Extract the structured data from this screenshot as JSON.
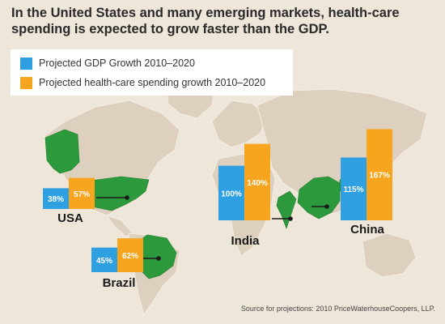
{
  "headline": "In the United States and many emerging markets, health-care spending is expected to grow faster than the GDP.",
  "legend": {
    "gdp": "Projected GDP Growth 2010–2020",
    "health": "Projected health-care spending growth 2010–2020"
  },
  "source": "Source for projections: 2010 PriceWaterhouseCoopers, LLP.",
  "colors": {
    "gdp": "#2e9fe0",
    "health": "#f7a51f",
    "country": "#2c9a3c",
    "land": "#ddd0be",
    "background": "#efe6da"
  },
  "chart_data": {
    "type": "bar",
    "categories": [
      "USA",
      "Brazil",
      "India",
      "China"
    ],
    "series": [
      {
        "name": "Projected GDP Growth 2010–2020",
        "values": [
          38,
          45,
          100,
          115
        ],
        "labels": [
          "38%",
          "45%",
          "100%",
          "115%"
        ]
      },
      {
        "name": "Projected health-care spending growth 2010–2020",
        "values": [
          57,
          62,
          140,
          167
        ],
        "labels": [
          "57%",
          "62%",
          "140%",
          "167%"
        ]
      }
    ]
  }
}
